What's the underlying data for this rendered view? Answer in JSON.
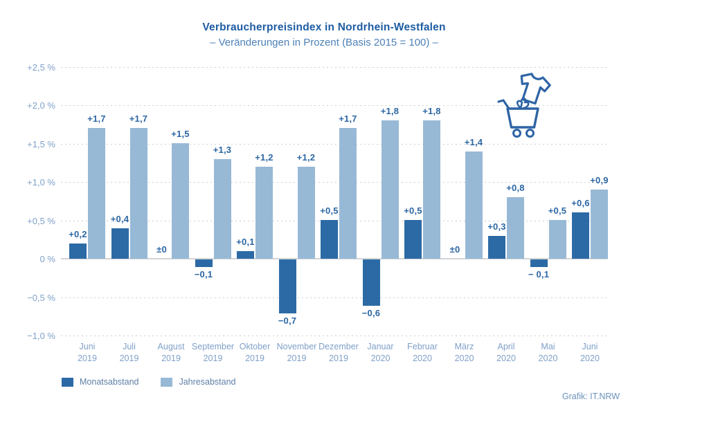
{
  "credit": "Grafik: IT.NRW",
  "icons": {
    "decoration": "shopping-cart-with-t-shirt-icon"
  },
  "colors": {
    "bar_monat": "#2c6aa5",
    "bar_jahres": "#97b9d6",
    "title": "#1e5ca2",
    "subtitle": "#4d81b8",
    "tick_label": "#7fa0c8",
    "month_label": "#7fa0c8",
    "data_label": "#2b66a3",
    "legend_label": "#5d7fa6",
    "grid": "#c9cdd1",
    "zero_line": "#d2d4d6",
    "credit": "#6a92bb",
    "icon": "#2e64a5"
  },
  "chart_data": {
    "type": "bar",
    "title": "Verbraucherpreisindex in Nordrhein-Westfalen",
    "subtitle": "– Veränderungen in Prozent (Basis 2015 = 100) –",
    "unit": "%",
    "basis": "2015 = 100",
    "categories": [
      {
        "month": "Juni",
        "year": "2019"
      },
      {
        "month": "Juli",
        "year": "2019"
      },
      {
        "month": "August",
        "year": "2019"
      },
      {
        "month": "September",
        "year": "2019"
      },
      {
        "month": "Oktober",
        "year": "2019"
      },
      {
        "month": "November",
        "year": "2019"
      },
      {
        "month": "Dezember",
        "year": "2019"
      },
      {
        "month": "Januar",
        "year": "2020"
      },
      {
        "month": "Februar",
        "year": "2020"
      },
      {
        "month": "März",
        "year": "2020"
      },
      {
        "month": "April",
        "year": "2020"
      },
      {
        "month": "Mai",
        "year": "2020"
      },
      {
        "month": "Juni",
        "year": "2020"
      }
    ],
    "series": [
      {
        "name": "Monatsabstand",
        "color": "#2c6aa5",
        "values": [
          0.2,
          0.4,
          0,
          -0.1,
          0.1,
          -0.7,
          0.5,
          -0.6,
          0.5,
          0,
          0.3,
          -0.1,
          0.6
        ],
        "labels": [
          "+0,2",
          "+0,4",
          "±0",
          "−0,1",
          "+0,1",
          "−0,7",
          "+0,5",
          "−0,6",
          "+0,5",
          "±0",
          "+0,3",
          "− 0,1",
          "+0,6"
        ]
      },
      {
        "name": "Jahresabstand",
        "color": "#97b9d6",
        "values": [
          1.7,
          1.7,
          1.5,
          1.3,
          1.2,
          1.2,
          1.7,
          1.8,
          1.8,
          1.4,
          0.8,
          0.5,
          0.9
        ],
        "labels": [
          "+1,7",
          "+1,7",
          "+1,5",
          "+1,3",
          "+1,2",
          "+1,2",
          "+1,7",
          "+1,8",
          "+1,8",
          "+1,4",
          "+0,8",
          "+0,5",
          "+0,9"
        ]
      }
    ],
    "ylim": [
      -1.0,
      2.5
    ],
    "y_ticks": [
      {
        "value": 2.5,
        "label": "+2,5 %"
      },
      {
        "value": 2.0,
        "label": "+2,0 %"
      },
      {
        "value": 1.5,
        "label": "+1,5 %"
      },
      {
        "value": 1.0,
        "label": "+1,0 %"
      },
      {
        "value": 0.5,
        "label": "+0,5 %"
      },
      {
        "value": 0,
        "label": "0 %"
      },
      {
        "value": -0.5,
        "label": "−0,5 %"
      },
      {
        "value": -1.0,
        "label": "−1,0 %"
      }
    ],
    "grid": "horizontal-dashed",
    "legend_position": "bottom-left"
  }
}
